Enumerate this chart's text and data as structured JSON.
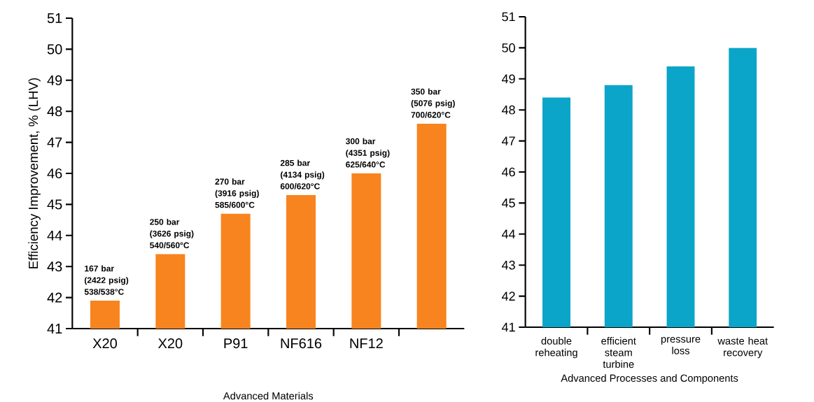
{
  "chart_data": [
    {
      "type": "bar",
      "xlabel": "Advanced Materials",
      "ylabel": "Efficiency Improvement, % (LHV)",
      "categories": [
        "X20",
        "X20",
        "P91",
        "NF616",
        "NF12",
        null
      ],
      "values": [
        41.9,
        43.4,
        44.7,
        45.3,
        46.0,
        47.6
      ],
      "color": "#f7841e",
      "annotations": [
        "167 bar (2422 psig) 538/538°C",
        "250 bar (3626 psig) 540/560°C",
        "270 bar (3916 psig) 585/600°C",
        "285 bar (4134 psig) 600/620°C",
        "300 bar (4351 psig) 625/640°C",
        "350 bar (5076 psig) 700/620°C"
      ],
      "ylim": [
        41,
        51
      ],
      "yticks": [
        41,
        42,
        43,
        44,
        45,
        46,
        47,
        48,
        49,
        50,
        51
      ],
      "grid": false
    },
    {
      "type": "bar",
      "xlabel": "Advanced Processes and Components",
      "categories": [
        "double reheating",
        "efficient steam turbine",
        "pressure loss",
        "waste heat recovery"
      ],
      "values": [
        48.4,
        48.8,
        49.4,
        50.0
      ],
      "color": "#0aa5c8",
      "ylim": [
        41,
        51
      ],
      "yticks": [
        41,
        42,
        43,
        44,
        45,
        46,
        47,
        48,
        49,
        50,
        51
      ],
      "grid": false
    }
  ]
}
